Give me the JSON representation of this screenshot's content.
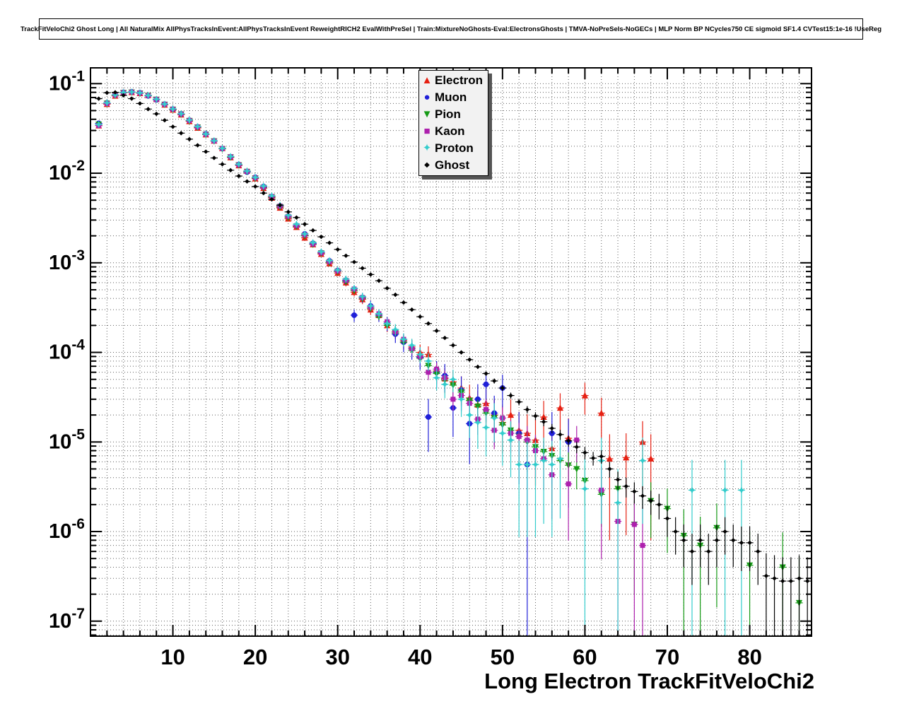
{
  "chart_data": {
    "type": "scatter",
    "title": "TrackFitVeloChi2 Ghost Long | All NaturalMix AllPhysTracksInEvent:AllPhysTracksInEvent ReweightRICH2 EvalWithPreSel | Train:MixtureNoGhosts-Eval:ElectronsGhosts | TMVA-NoPreSels-NoGECs | MLP Norm BP NCycles750 CE sigmoid SF1.4 CVTest15:1e-16 !UseReg",
    "x_label": "Long Electron TrackFitVeloChi2",
    "y_label": "",
    "y_scale": "log",
    "grid": true,
    "legend_position": "top-center",
    "x_min": 0,
    "x_max": 87.5,
    "y_min": 6.8e-08,
    "y_max": 0.15,
    "x_ticks": [
      10,
      20,
      30,
      40,
      50,
      60,
      70,
      80
    ],
    "y_tick_exponents": [
      -1,
      -2,
      -3,
      -4,
      -5,
      -6,
      -7
    ],
    "series": [
      {
        "label": "Electron",
        "color": "#e62012",
        "marker": "triangle-up",
        "n_scale": 200000,
        "x": [
          1,
          2,
          3,
          4,
          5,
          6,
          7,
          8,
          9,
          10,
          11,
          12,
          13,
          14,
          15,
          16,
          17,
          18,
          19,
          20,
          21,
          22,
          23,
          24,
          25,
          26,
          27,
          28,
          29,
          30,
          31,
          32,
          33,
          34,
          35,
          36,
          37,
          38,
          39,
          40,
          41,
          42,
          43,
          44,
          45,
          46,
          47,
          48,
          49,
          50,
          51,
          52,
          53,
          54,
          55,
          56,
          57,
          58,
          60,
          62,
          63,
          65,
          67,
          68
        ],
        "y": [
          0.034,
          0.059,
          0.073,
          0.079,
          0.08,
          0.078,
          0.074,
          0.067,
          0.058,
          0.051,
          0.045,
          0.038,
          0.032,
          0.027,
          0.023,
          0.019,
          0.015,
          0.0122,
          0.0106,
          0.0087,
          0.0068,
          0.0053,
          0.0041,
          0.0031,
          0.0025,
          0.0019,
          0.0016,
          0.00125,
          0.00098,
          0.00077,
          0.0006,
          0.00047,
          0.00039,
          0.0003,
          0.00026,
          0.0002,
          0.00017,
          0.000135,
          0.000115,
          0.0001,
          9.5e-05,
          6.2e-05,
          5.1e-05,
          4.7e-05,
          4e-05,
          3.1e-05,
          2.6e-05,
          2.7e-05,
          2e-05,
          1.65e-05,
          2e-05,
          1.35e-05,
          1.25e-05,
          1.05e-05,
          1.9e-05,
          8.5e-06,
          2.4e-05,
          1.1e-05,
          3.3e-05,
          2.1e-05,
          6.5e-06,
          6.7e-06,
          1e-05,
          6.5e-06
        ]
      },
      {
        "label": "Muon",
        "color": "#1f1fd8",
        "marker": "circle",
        "n_scale": 150000,
        "x": [
          1,
          2,
          3,
          4,
          5,
          6,
          7,
          8,
          9,
          10,
          11,
          12,
          13,
          14,
          15,
          16,
          17,
          18,
          19,
          20,
          21,
          22,
          23,
          24,
          25,
          26,
          27,
          28,
          29,
          30,
          31,
          32,
          33,
          34,
          35,
          36,
          37,
          38,
          39,
          40,
          41,
          42,
          43,
          44,
          45,
          46,
          47,
          48,
          49,
          50,
          52,
          53,
          56,
          58
        ],
        "y": [
          0.036,
          0.061,
          0.075,
          0.08,
          0.081,
          0.079,
          0.073,
          0.066,
          0.059,
          0.052,
          0.046,
          0.039,
          0.033,
          0.0275,
          0.023,
          0.0188,
          0.0152,
          0.0125,
          0.0103,
          0.009,
          0.0071,
          0.0055,
          0.0043,
          0.0033,
          0.0026,
          0.0021,
          0.00165,
          0.0013,
          0.00105,
          0.00082,
          0.00063,
          0.00026,
          0.00041,
          0.00033,
          0.00026,
          0.00021,
          0.00016,
          0.00013,
          0.00011,
          8.8e-05,
          1.9e-05,
          6e-05,
          5.5e-05,
          2.4e-05,
          3.8e-05,
          1.6e-05,
          3e-05,
          4.4e-05,
          2.1e-05,
          4e-05,
          1.25e-05,
          5.6e-06,
          1.25e-05,
          1e-05
        ]
      },
      {
        "label": "Pion",
        "color": "#159a15",
        "marker": "triangle-down",
        "n_scale": 1200000,
        "x": [
          1,
          2,
          3,
          4,
          5,
          6,
          7,
          8,
          9,
          10,
          11,
          12,
          13,
          14,
          15,
          16,
          17,
          18,
          19,
          20,
          21,
          22,
          23,
          24,
          25,
          26,
          27,
          28,
          29,
          30,
          31,
          32,
          33,
          34,
          35,
          36,
          37,
          38,
          39,
          40,
          41,
          42,
          43,
          44,
          45,
          46,
          47,
          48,
          49,
          50,
          51,
          52,
          53,
          54,
          55,
          56,
          57,
          58,
          59,
          60,
          62,
          64,
          66,
          68,
          70,
          72,
          74,
          76,
          80,
          84,
          86
        ],
        "y": [
          0.035,
          0.06,
          0.074,
          0.079,
          0.08,
          0.078,
          0.0735,
          0.0665,
          0.0585,
          0.0515,
          0.0455,
          0.0385,
          0.0325,
          0.027,
          0.0228,
          0.0187,
          0.0151,
          0.0123,
          0.0104,
          0.0088,
          0.0069,
          0.0054,
          0.0042,
          0.0032,
          0.00255,
          0.002,
          0.0016,
          0.00128,
          0.00101,
          0.0008,
          0.00062,
          0.00049,
          0.0004,
          0.00031,
          0.00025,
          0.0002,
          0.000165,
          0.00013,
          0.000105,
          8.6e-05,
          7.1e-05,
          5.8e-05,
          4.9e-05,
          4.3e-05,
          3.6e-05,
          2.9e-05,
          2.5e-05,
          2.1e-05,
          1.85e-05,
          1.55e-05,
          1.35e-05,
          1.15e-05,
          1e-05,
          8.8e-06,
          7.8e-06,
          7e-06,
          6.2e-06,
          5.5e-06,
          5e-06,
          3.7e-06,
          2.6e-06,
          3e-06,
          1.2e-06,
          2.2e-06,
          1.8e-06,
          9e-07,
          7e-07,
          1.1e-06,
          4.2e-07,
          4e-07,
          1.6e-07
        ]
      },
      {
        "label": "Kaon",
        "color": "#ad20ad",
        "marker": "square",
        "n_scale": 500000,
        "x": [
          1,
          2,
          3,
          4,
          5,
          6,
          7,
          8,
          9,
          10,
          11,
          12,
          13,
          14,
          15,
          16,
          17,
          18,
          19,
          20,
          21,
          22,
          23,
          24,
          25,
          26,
          27,
          28,
          29,
          30,
          31,
          32,
          33,
          34,
          35,
          36,
          37,
          38,
          39,
          40,
          41,
          42,
          43,
          44,
          45,
          46,
          47,
          48,
          49,
          50,
          51,
          52,
          53,
          54,
          55,
          56,
          58,
          59,
          62,
          64,
          66,
          67
        ],
        "y": [
          0.034,
          0.06,
          0.0745,
          0.0795,
          0.0805,
          0.0785,
          0.0738,
          0.0668,
          0.0588,
          0.0518,
          0.0458,
          0.0388,
          0.0328,
          0.0272,
          0.0229,
          0.0189,
          0.0153,
          0.0124,
          0.0105,
          0.0089,
          0.007,
          0.0055,
          0.0043,
          0.0033,
          0.0026,
          0.00205,
          0.00162,
          0.00129,
          0.00103,
          0.00081,
          0.00064,
          0.00051,
          0.00041,
          0.00032,
          0.00027,
          0.00022,
          0.00017,
          0.00014,
          0.00011,
          9e-05,
          6e-05,
          6.5e-05,
          5.2e-05,
          3e-05,
          3.3e-05,
          2.7e-05,
          1.8e-05,
          2.3e-05,
          1.35e-05,
          1.85e-05,
          1.25e-05,
          1.15e-05,
          1.05e-05,
          8e-06,
          6.5e-06,
          4.3e-06,
          3.4e-06,
          1.05e-05,
          2.9e-06,
          1.3e-06,
          1.2e-06,
          7e-07
        ]
      },
      {
        "label": "Proton",
        "color": "#33cccc",
        "marker": "star",
        "n_scale": 250000,
        "x": [
          1,
          2,
          3,
          4,
          5,
          6,
          7,
          8,
          9,
          10,
          11,
          12,
          13,
          14,
          15,
          16,
          17,
          18,
          19,
          20,
          21,
          22,
          23,
          24,
          25,
          26,
          27,
          28,
          29,
          30,
          31,
          32,
          33,
          34,
          35,
          36,
          37,
          38,
          39,
          40,
          41,
          42,
          43,
          44,
          45,
          46,
          47,
          48,
          49,
          50,
          51,
          52,
          53,
          54,
          55,
          56,
          57,
          60,
          62,
          64,
          67,
          73,
          77,
          79
        ],
        "y": [
          0.035,
          0.061,
          0.0748,
          0.0798,
          0.0808,
          0.0788,
          0.0741,
          0.0672,
          0.0592,
          0.0522,
          0.0462,
          0.0392,
          0.0332,
          0.0274,
          0.0231,
          0.019,
          0.0154,
          0.0126,
          0.0106,
          0.009,
          0.0072,
          0.0056,
          0.0044,
          0.0034,
          0.0027,
          0.0021,
          0.00168,
          0.00133,
          0.00106,
          0.00083,
          0.00066,
          0.00052,
          0.00042,
          0.00033,
          0.00027,
          0.00021,
          0.00018,
          0.00014,
          0.00012,
          9.5e-05,
          8e-05,
          5.2e-05,
          4.4e-05,
          5e-05,
          3e-05,
          2e-05,
          1.65e-05,
          1.45e-05,
          1.85e-05,
          1.25e-05,
          1.05e-05,
          5.6e-06,
          5.6e-06,
          5.6e-06,
          6.2e-06,
          5.6e-06,
          6.5e-06,
          3e-06,
          6.2e-06,
          2.1e-06,
          6.2e-06,
          2.9e-06,
          2.9e-06,
          2.9e-06
        ]
      },
      {
        "label": "Ghost",
        "color": "#000000",
        "marker": "diamond",
        "n_scale": 5000000,
        "x": [
          1,
          2,
          3,
          4,
          5,
          6,
          7,
          8,
          9,
          10,
          11,
          12,
          13,
          14,
          15,
          16,
          17,
          18,
          19,
          20,
          21,
          22,
          23,
          24,
          25,
          26,
          27,
          28,
          29,
          30,
          31,
          32,
          33,
          34,
          35,
          36,
          37,
          38,
          39,
          40,
          41,
          42,
          43,
          44,
          45,
          46,
          47,
          48,
          49,
          50,
          51,
          52,
          53,
          54,
          55,
          56,
          57,
          58,
          59,
          60,
          61,
          62,
          63,
          64,
          65,
          66,
          67,
          68,
          69,
          70,
          71,
          72,
          73,
          74,
          75,
          76,
          77,
          78,
          79,
          80,
          81,
          82,
          83,
          84,
          85,
          86,
          87
        ],
        "y": [
          0.068,
          0.079,
          0.08,
          0.074,
          0.068,
          0.06,
          0.052,
          0.046,
          0.039,
          0.033,
          0.028,
          0.024,
          0.0205,
          0.0174,
          0.0148,
          0.0126,
          0.0108,
          0.0093,
          0.0081,
          0.0071,
          0.006,
          0.0051,
          0.0044,
          0.0037,
          0.0032,
          0.0027,
          0.0023,
          0.00195,
          0.00167,
          0.00141,
          0.0012,
          0.00102,
          0.00087,
          0.00074,
          0.00063,
          0.00052,
          0.00044,
          0.00036,
          0.0003,
          0.00025,
          0.00021,
          0.000174,
          0.000145,
          0.00012,
          0.0001,
          8.3e-05,
          6.9e-05,
          5.8e-05,
          4.8e-05,
          4e-05,
          3.3e-05,
          2.8e-05,
          2.3e-05,
          1.95e-05,
          1.68e-05,
          1.42e-05,
          1.21e-05,
          1.03e-05,
          8.8e-06,
          7.6e-06,
          6.6e-06,
          6.9e-06,
          5e-06,
          3.8e-06,
          3.2e-06,
          2.8e-06,
          2.5e-06,
          2.2e-06,
          2e-06,
          1.4e-06,
          1e-06,
          8e-07,
          6e-07,
          8e-07,
          6e-07,
          8e-07,
          1e-06,
          8e-07,
          7.5e-07,
          7.5e-07,
          6e-07,
          3.2e-07,
          3e-07,
          2.8e-07,
          2.8e-07,
          3e-07,
          2.8e-07
        ]
      }
    ]
  }
}
